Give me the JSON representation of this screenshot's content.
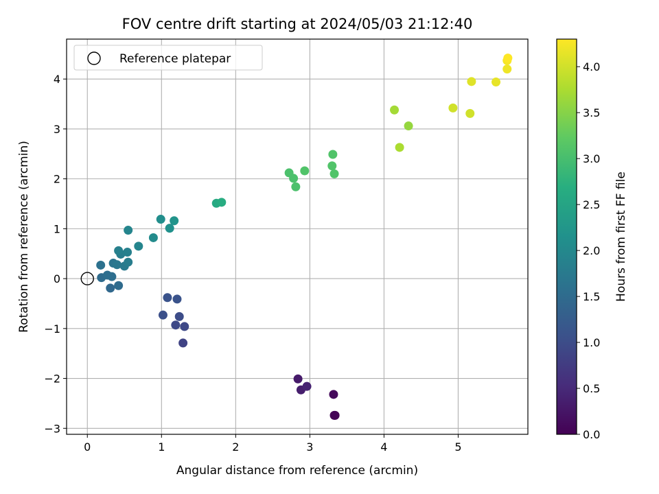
{
  "chart_data": {
    "type": "scatter",
    "title": "FOV centre drift starting at 2024/05/03 21:12:40",
    "xlabel": "Angular distance from reference (arcmin)",
    "ylabel": "Rotation from reference (arcmin)",
    "xlim": [
      -0.28,
      5.94
    ],
    "ylim": [
      -3.12,
      4.8
    ],
    "xticks": [
      0,
      1,
      2,
      3,
      4,
      5
    ],
    "yticks": [
      -3,
      -2,
      -1,
      0,
      1,
      2,
      3,
      4
    ],
    "xtick_labels": [
      "0",
      "1",
      "2",
      "3",
      "4",
      "5"
    ],
    "ytick_labels": [
      "−3",
      "−2",
      "−1",
      "0",
      "1",
      "2",
      "3",
      "4"
    ],
    "grid": true,
    "legend": {
      "position": "top-left",
      "entries": [
        {
          "label": "Reference platepar",
          "marker": "open-circle"
        }
      ]
    },
    "reference_point": {
      "x": 0,
      "y": 0
    },
    "colorbar": {
      "label": "Hours from first FF file",
      "colormap": "viridis",
      "range": [
        0,
        4.3
      ],
      "ticks": [
        0,
        0.5,
        1,
        1.5,
        2,
        2.5,
        3,
        3.5,
        4
      ],
      "tick_labels": [
        "0.0",
        "0.5",
        "1.0",
        "1.5",
        "2.0",
        "2.5",
        "3.0",
        "3.5",
        "4.0"
      ]
    },
    "points": [
      {
        "x": 3.34,
        "y": -2.74,
        "c": 0.0
      },
      {
        "x": 3.33,
        "y": -2.74,
        "c": 0.03
      },
      {
        "x": 3.32,
        "y": -2.32,
        "c": 0.1
      },
      {
        "x": 2.84,
        "y": -2.01,
        "c": 0.3
      },
      {
        "x": 2.88,
        "y": -2.23,
        "c": 0.35
      },
      {
        "x": 2.96,
        "y": -2.16,
        "c": 0.4
      },
      {
        "x": 1.29,
        "y": -1.29,
        "c": 0.85
      },
      {
        "x": 1.31,
        "y": -0.96,
        "c": 0.95
      },
      {
        "x": 1.19,
        "y": -0.93,
        "c": 0.95
      },
      {
        "x": 1.24,
        "y": -0.76,
        "c": 1.0
      },
      {
        "x": 1.02,
        "y": -0.73,
        "c": 1.05
      },
      {
        "x": 1.08,
        "y": -0.38,
        "c": 1.1
      },
      {
        "x": 1.21,
        "y": -0.41,
        "c": 1.1
      },
      {
        "x": 0.31,
        "y": -0.19,
        "c": 1.45
      },
      {
        "x": 0.42,
        "y": -0.14,
        "c": 1.5
      },
      {
        "x": 0.19,
        "y": 0.02,
        "c": 1.5
      },
      {
        "x": 0.27,
        "y": 0.07,
        "c": 1.55
      },
      {
        "x": 0.33,
        "y": 0.04,
        "c": 1.55
      },
      {
        "x": 0.18,
        "y": 0.27,
        "c": 1.6
      },
      {
        "x": 0.35,
        "y": 0.31,
        "c": 1.65
      },
      {
        "x": 0.4,
        "y": 0.28,
        "c": 1.7
      },
      {
        "x": 0.5,
        "y": 0.25,
        "c": 1.75
      },
      {
        "x": 0.55,
        "y": 0.33,
        "c": 1.8
      },
      {
        "x": 0.45,
        "y": 0.49,
        "c": 1.8
      },
      {
        "x": 0.42,
        "y": 0.56,
        "c": 1.85
      },
      {
        "x": 0.54,
        "y": 0.53,
        "c": 1.85
      },
      {
        "x": 0.69,
        "y": 0.65,
        "c": 1.95
      },
      {
        "x": 0.55,
        "y": 0.97,
        "c": 1.95
      },
      {
        "x": 0.89,
        "y": 0.82,
        "c": 2.05
      },
      {
        "x": 0.99,
        "y": 1.19,
        "c": 2.1
      },
      {
        "x": 1.11,
        "y": 1.01,
        "c": 2.15
      },
      {
        "x": 1.17,
        "y": 1.16,
        "c": 2.2
      },
      {
        "x": 1.74,
        "y": 1.51,
        "c": 2.6
      },
      {
        "x": 1.81,
        "y": 1.53,
        "c": 2.65
      },
      {
        "x": 2.72,
        "y": 2.12,
        "c": 3.05
      },
      {
        "x": 2.78,
        "y": 2.01,
        "c": 3.05
      },
      {
        "x": 2.81,
        "y": 1.84,
        "c": 3.05
      },
      {
        "x": 2.93,
        "y": 2.16,
        "c": 3.1
      },
      {
        "x": 3.31,
        "y": 2.49,
        "c": 3.1
      },
      {
        "x": 3.3,
        "y": 2.26,
        "c": 3.1
      },
      {
        "x": 3.33,
        "y": 2.1,
        "c": 3.1
      },
      {
        "x": 4.14,
        "y": 3.38,
        "c": 3.7
      },
      {
        "x": 4.33,
        "y": 3.06,
        "c": 3.6
      },
      {
        "x": 4.21,
        "y": 2.63,
        "c": 3.75
      },
      {
        "x": 4.93,
        "y": 3.42,
        "c": 4.0
      },
      {
        "x": 5.16,
        "y": 3.31,
        "c": 4.0
      },
      {
        "x": 5.18,
        "y": 3.95,
        "c": 4.1
      },
      {
        "x": 5.51,
        "y": 3.94,
        "c": 4.15
      },
      {
        "x": 5.66,
        "y": 4.2,
        "c": 4.2
      },
      {
        "x": 5.66,
        "y": 4.37,
        "c": 4.25
      },
      {
        "x": 5.67,
        "y": 4.42,
        "c": 4.3
      }
    ]
  }
}
